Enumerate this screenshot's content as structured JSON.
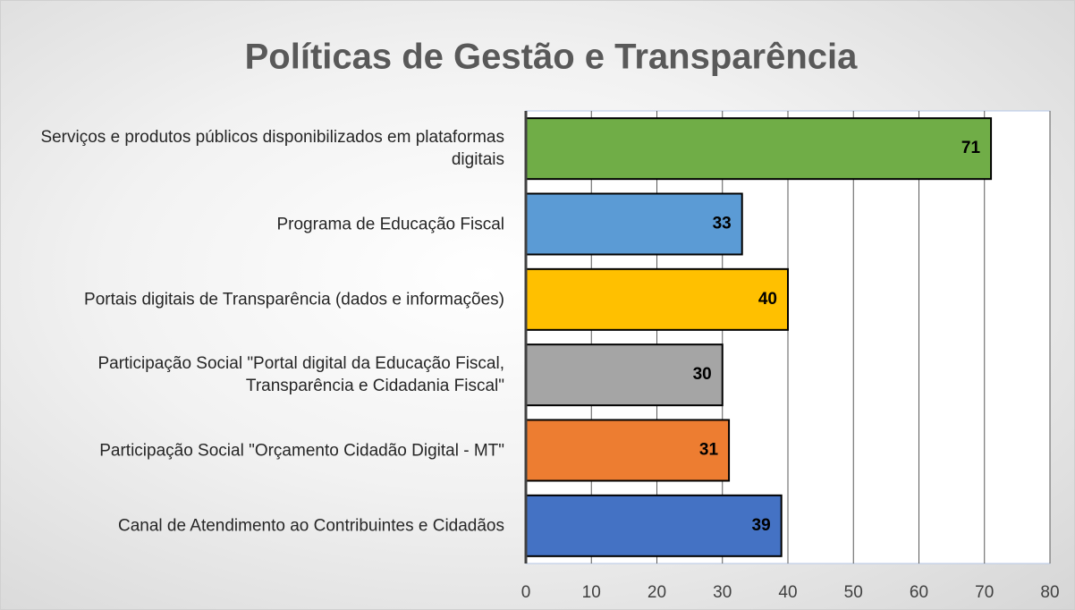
{
  "chart_data": {
    "type": "barh",
    "title": "Políticas de Gestão e Transparência",
    "categories": [
      "Serviços e produtos públicos disponibilizados em plataformas digitais",
      "Programa de Educação Fiscal",
      "Portais digitais de Transparência (dados e informações)",
      "Participação Social \"Portal digital da Educação Fiscal, Transparência e Cidadania Fiscal\"",
      "Participação Social \"Orçamento Cidadão Digital - MT\"",
      "Canal de Atendimento ao Contribuintes e Cidadãos"
    ],
    "values": [
      71,
      33,
      40,
      30,
      31,
      39
    ],
    "colors": [
      "#70ad47",
      "#5b9bd5",
      "#ffc000",
      "#a5a5a5",
      "#ed7d31",
      "#4472c4"
    ],
    "xlim": [
      0,
      80
    ],
    "xticks": [
      0,
      10,
      20,
      30,
      40,
      50,
      60,
      70,
      80
    ],
    "grid": true
  }
}
